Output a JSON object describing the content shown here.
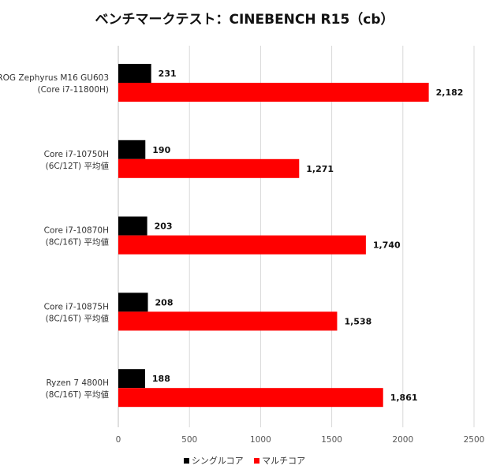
{
  "chart_data": {
    "type": "bar",
    "orientation": "horizontal",
    "title": "ベンチマークテスト：CINEBENCH R15（cb）",
    "categories": [
      [
        "ROG Zephyrus M16 GU603",
        "(Core i7-11800H)"
      ],
      [
        "Core i7-10750H",
        "(6C/12T) 平均値"
      ],
      [
        "Core i7-10870H",
        "(8C/16T) 平均値"
      ],
      [
        "Core i7-10875H",
        "(8C/16T) 平均値"
      ],
      [
        "Ryzen 7 4800H",
        "(8C/16T) 平均値"
      ]
    ],
    "series": [
      {
        "name": "シングルコア",
        "color": "#000000",
        "values": [
          231,
          190,
          203,
          208,
          188
        ],
        "labels": [
          "231",
          "190",
          "203",
          "208",
          "188"
        ]
      },
      {
        "name": "マルチコア",
        "color": "#ff0000",
        "values": [
          2182,
          1271,
          1740,
          1538,
          1861
        ],
        "labels": [
          "2,182",
          "1,271",
          "1,740",
          "1,538",
          "1,861"
        ]
      }
    ],
    "xlim": [
      0,
      2500
    ],
    "xticks": [
      0,
      500,
      1000,
      1500,
      2000,
      2500
    ],
    "grid": true,
    "legend_position": "bottom"
  }
}
